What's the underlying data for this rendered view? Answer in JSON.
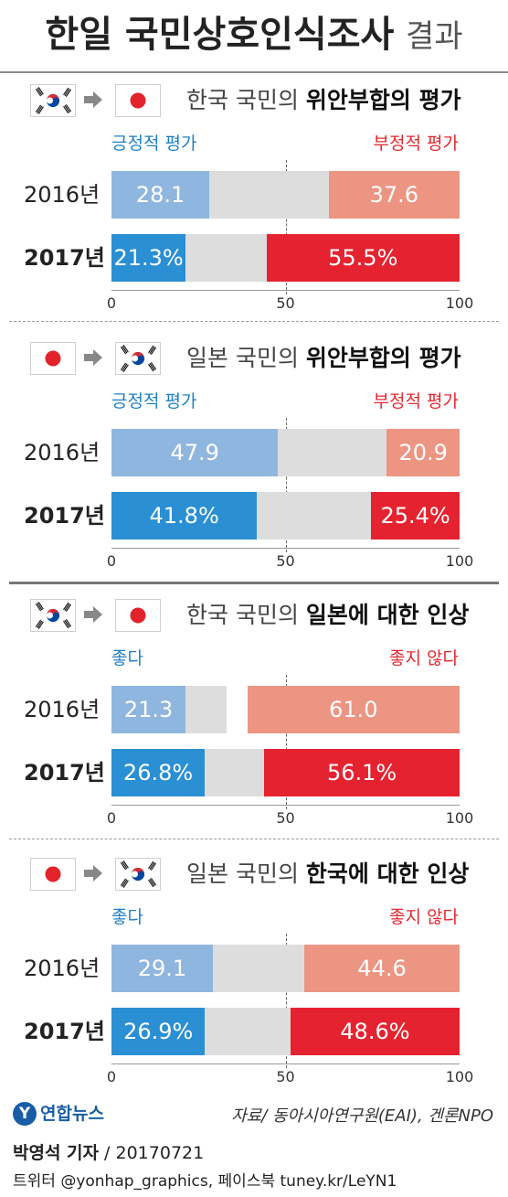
{
  "title": {
    "main": "한일 국민상호인식조사",
    "sub": "결과"
  },
  "colors": {
    "positive_2016": "#8fb6df",
    "positive_2017": "#2a8fd3",
    "neutral": "#dddddd",
    "negative_2016": "#ec9583",
    "negative_2017": "#e52330",
    "legend_positive": "#1f7fc4",
    "legend_negative": "#e3282f"
  },
  "chart_data": [
    {
      "type": "bar",
      "stacked": true,
      "orientation": "horizontal",
      "from_flag": "korea-flag",
      "to_flag": "japan-flag",
      "title_prefix": "한국 국민의",
      "title_bold": "위안부합의 평가",
      "legend": {
        "positive": "긍정적 평가",
        "negative": "부정적 평가"
      },
      "categories": [
        "2016년",
        "2017년"
      ],
      "series": [
        {
          "name": "긍정적 평가",
          "values": [
            28.1,
            21.3
          ]
        },
        {
          "name": "부정적 평가",
          "values": [
            37.6,
            55.5
          ]
        }
      ],
      "labels": {
        "positive": [
          "28.1",
          "21.3%"
        ],
        "negative": [
          "37.6",
          "55.5%"
        ]
      },
      "xlim": [
        0,
        100
      ],
      "ticks": [
        "0",
        "50",
        "100"
      ]
    },
    {
      "type": "bar",
      "stacked": true,
      "orientation": "horizontal",
      "from_flag": "japan-flag",
      "to_flag": "korea-flag",
      "title_prefix": "일본 국민의",
      "title_bold": "위안부합의 평가",
      "legend": {
        "positive": "긍정적 평가",
        "negative": "부정적 평가"
      },
      "categories": [
        "2016년",
        "2017년"
      ],
      "series": [
        {
          "name": "긍정적 평가",
          "values": [
            47.9,
            41.8
          ]
        },
        {
          "name": "부정적 평가",
          "values": [
            20.9,
            25.4
          ]
        }
      ],
      "labels": {
        "positive": [
          "47.9",
          "41.8%"
        ],
        "negative": [
          "20.9",
          "25.4%"
        ]
      },
      "xlim": [
        0,
        100
      ],
      "ticks": [
        "0",
        "50",
        "100"
      ]
    },
    {
      "type": "bar",
      "stacked": true,
      "orientation": "horizontal",
      "from_flag": "korea-flag",
      "to_flag": "japan-flag",
      "title_prefix": "한국 국민의",
      "title_bold": "일본에 대한 인상",
      "legend": {
        "positive": "좋다",
        "negative": "좋지 않다"
      },
      "categories": [
        "2016년",
        "2017년"
      ],
      "series": [
        {
          "name": "좋다",
          "values": [
            21.3,
            26.8
          ]
        },
        {
          "name": "좋지 않다",
          "values": [
            61.0,
            56.1
          ]
        }
      ],
      "labels": {
        "positive": [
          "21.3",
          "26.8%"
        ],
        "negative": [
          "61.0",
          "56.1%"
        ]
      },
      "xlim": [
        0,
        100
      ],
      "ticks": [
        "0",
        "50",
        "100"
      ]
    },
    {
      "type": "bar",
      "stacked": true,
      "orientation": "horizontal",
      "from_flag": "japan-flag",
      "to_flag": "korea-flag",
      "title_prefix": "일본 국민의",
      "title_bold": "한국에 대한 인상",
      "legend": {
        "positive": "좋다",
        "negative": "좋지 않다"
      },
      "categories": [
        "2016년",
        "2017년"
      ],
      "series": [
        {
          "name": "좋다",
          "values": [
            29.1,
            26.9
          ]
        },
        {
          "name": "좋지 않다",
          "values": [
            44.6,
            48.6
          ]
        }
      ],
      "labels": {
        "positive": [
          "29.1",
          "26.9%"
        ],
        "negative": [
          "44.6",
          "48.6%"
        ]
      },
      "xlim": [
        0,
        100
      ],
      "ticks": [
        "0",
        "50",
        "100"
      ]
    }
  ],
  "footer": {
    "logo_text": "연합뉴스",
    "source": "자료/ 동아시아연구원(EAI), 겐론NPO",
    "reporter": "박영석 기자",
    "date": " / 20170721",
    "social": "트위터 @yonhap_graphics, 페이스북 tuney.kr/LeYN1"
  }
}
